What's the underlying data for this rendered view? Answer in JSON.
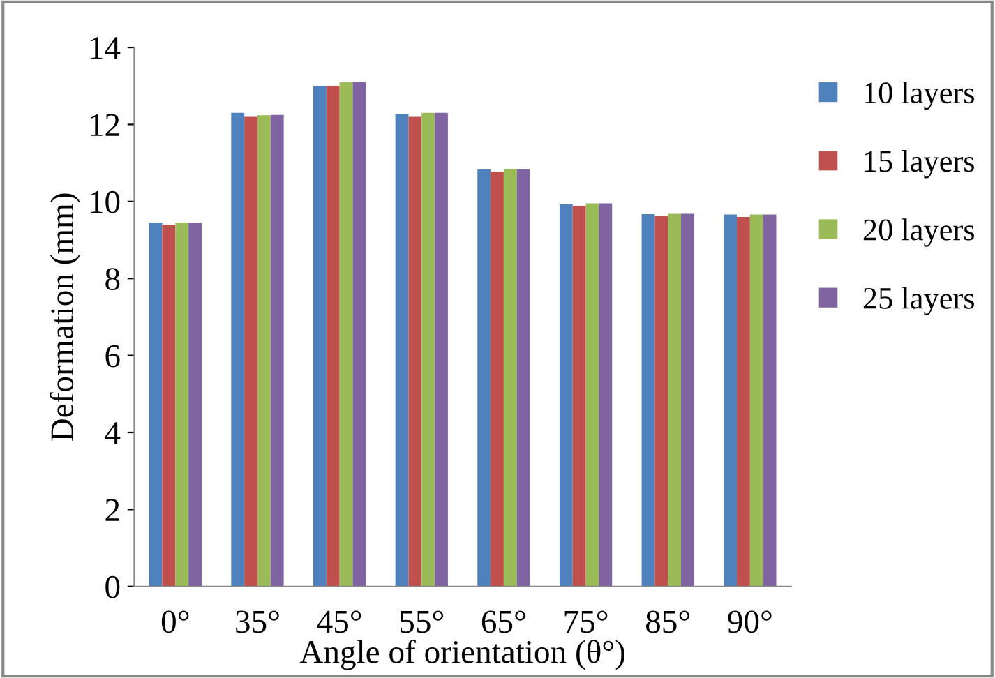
{
  "chart_data": {
    "type": "bar",
    "xlabel": "Angle of orientation (θ°)",
    "ylabel": "Deformation (mm)",
    "categories": [
      "0°",
      "35°",
      "45°",
      "55°",
      "65°",
      "75°",
      "85°",
      "90°"
    ],
    "series": [
      {
        "name": "10 layers",
        "color": "#4f81bd",
        "values": [
          9.45,
          12.3,
          13.0,
          12.27,
          10.83,
          9.93,
          9.67,
          9.66
        ]
      },
      {
        "name": "15 layers",
        "color": "#c0504d",
        "values": [
          9.4,
          12.2,
          13.0,
          12.2,
          10.77,
          9.88,
          9.62,
          9.6
        ]
      },
      {
        "name": "20 layers",
        "color": "#9bbb59",
        "values": [
          9.45,
          12.24,
          13.1,
          12.3,
          10.85,
          9.95,
          9.68,
          9.66
        ]
      },
      {
        "name": "25 layers",
        "color": "#8064a2",
        "values": [
          9.45,
          12.25,
          13.1,
          12.3,
          10.83,
          9.95,
          9.68,
          9.66
        ]
      }
    ],
    "ylim": [
      0,
      14
    ],
    "yticks": [
      0,
      2,
      4,
      6,
      8,
      10,
      12,
      14
    ],
    "grid": false,
    "legend": "right"
  }
}
